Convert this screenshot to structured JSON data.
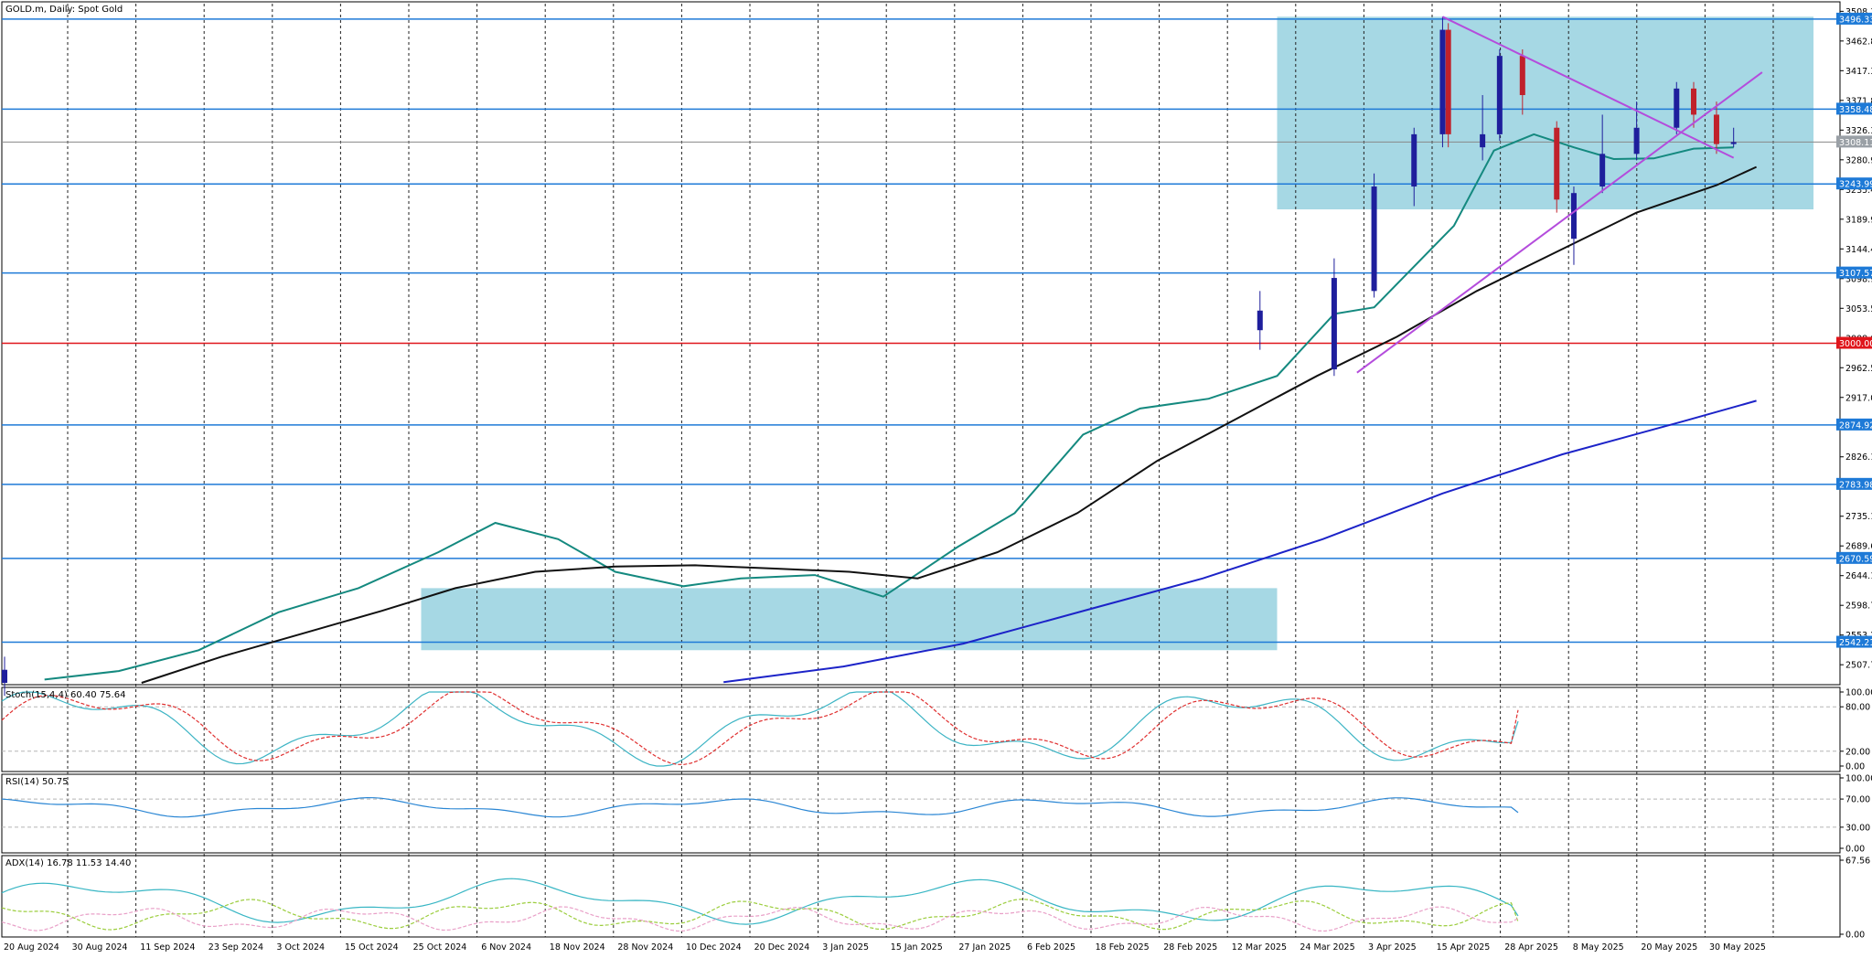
{
  "panels": {
    "main_title": "GOLD.m, Daily: Spot Gold",
    "stoch_title": "Stoch(15,4,4) 60.40 75.64",
    "rsi_title": "RSI(14) 50.75",
    "adx_title": "ADX(14) 16.78 11.53 14.40"
  },
  "colors": {
    "bull_candle": "#1e1e9c",
    "bear_candle": "#c0212b",
    "ma_teal": "#14897f",
    "ma_black": "#111111",
    "ma_blue": "#1c23c8",
    "level_blue": "#1e7ad7",
    "level_red": "#e0151b",
    "zone_fill": "#a6d8e4",
    "triangle": "#b44cdc",
    "stoch_main": "#3cb4c4",
    "stoch_signal": "#e03030",
    "rsi_line": "#2a86d4",
    "adx_line": "#38b6c4",
    "di_plus": "#9bcd3c",
    "di_minus": "#e9a0c8"
  },
  "x_ticks": [
    "20 Aug 2024",
    "30 Aug 2024",
    "11 Sep 2024",
    "23 Sep 2024",
    "3 Oct 2024",
    "15 Oct 2024",
    "25 Oct 2024",
    "6 Nov 2024",
    "18 Nov 2024",
    "28 Nov 2024",
    "10 Dec 2024",
    "20 Dec 2024",
    "3 Jan 2025",
    "15 Jan 2025",
    "27 Jan 2025",
    "6 Feb 2025",
    "18 Feb 2025",
    "28 Feb 2025",
    "12 Mar 2025",
    "24 Mar 2025",
    "3 Apr 2025",
    "15 Apr 2025",
    "28 Apr 2025",
    "8 May 2025",
    "20 May 2025",
    "30 May 2025"
  ],
  "y_ticks_main": [
    "3508.30",
    "3462.82",
    "3417.34",
    "3371.86",
    "3326.38",
    "3280.90",
    "3235.42",
    "3189.94",
    "3144.46",
    "3098.98",
    "3053.50",
    "3008.02",
    "2962.54",
    "2917.06",
    "2871.58",
    "2826.10",
    "2780.62",
    "2735.14",
    "2689.66",
    "2644.18",
    "2598.70",
    "2553.22",
    "2507.74"
  ],
  "price_labels": [
    {
      "text": "3496.33",
      "kind": "level"
    },
    {
      "text": "3358.48",
      "kind": "level"
    },
    {
      "text": "3308.11",
      "kind": "current"
    },
    {
      "text": "3243.99",
      "kind": "level"
    },
    {
      "text": "3107.57",
      "kind": "level"
    },
    {
      "text": "3000.00",
      "kind": "red"
    },
    {
      "text": "2874.92",
      "kind": "level"
    },
    {
      "text": "2783.98",
      "kind": "level"
    },
    {
      "text": "2670.59",
      "kind": "level"
    },
    {
      "text": "2542.21",
      "kind": "level"
    }
  ],
  "stoch_ticks": [
    "100.00",
    "80.00",
    "20.00",
    "0.00"
  ],
  "rsi_ticks": [
    "100.00",
    "70.00",
    "30.00",
    "0.00"
  ],
  "adx_ticks": [
    "67.56",
    "0.00"
  ],
  "chart_data": {
    "type": "candlestick",
    "title": "GOLD.m, Daily: Spot Gold",
    "ylim": [
      2480,
      3520
    ],
    "x_range": [
      "2024-08-13",
      "2025-06-30"
    ],
    "grid": true,
    "horizontal_levels": [
      3496.33,
      3358.48,
      3243.99,
      3107.57,
      3000.0,
      2874.92,
      2783.98,
      2670.59,
      2542.21
    ],
    "current_price": 3308.11,
    "shaded_zones": [
      {
        "x": [
          "2024-10-25",
          "2025-03-24"
        ],
        "y": [
          2530,
          2625
        ]
      },
      {
        "x": [
          "2025-03-24",
          "2025-06-26"
        ],
        "y": [
          3205,
          3500
        ]
      }
    ],
    "trendlines": [
      {
        "from": [
          "2025-04-22",
          3500
        ],
        "to": [
          "2025-06-12",
          3284
        ]
      },
      {
        "from": [
          "2025-04-07",
          2955
        ],
        "to": [
          "2025-06-17",
          3415
        ]
      }
    ],
    "moving_averages": [
      {
        "id": "ma_teal",
        "points": [
          [
            "2024-08-20",
            2485
          ],
          [
            "2024-09-02",
            2498
          ],
          [
            "2024-09-16",
            2530
          ],
          [
            "2024-09-30",
            2588
          ],
          [
            "2024-10-14",
            2625
          ],
          [
            "2024-10-28",
            2680
          ],
          [
            "2024-11-07",
            2725
          ],
          [
            "2024-11-18",
            2700
          ],
          [
            "2024-11-28",
            2650
          ],
          [
            "2024-12-10",
            2628
          ],
          [
            "2024-12-20",
            2640
          ],
          [
            "2025-01-02",
            2645
          ],
          [
            "2025-01-14",
            2612
          ],
          [
            "2025-01-27",
            2688
          ],
          [
            "2025-02-06",
            2740
          ],
          [
            "2025-02-18",
            2860
          ],
          [
            "2025-02-28",
            2900
          ],
          [
            "2025-03-12",
            2915
          ],
          [
            "2025-03-24",
            2950
          ],
          [
            "2025-04-03",
            3045
          ],
          [
            "2025-04-10",
            3055
          ],
          [
            "2025-04-24",
            3180
          ],
          [
            "2025-05-01",
            3295
          ],
          [
            "2025-05-08",
            3320
          ],
          [
            "2025-05-15",
            3300
          ],
          [
            "2025-05-22",
            3282
          ],
          [
            "2025-05-29",
            3283
          ],
          [
            "2025-06-05",
            3298
          ],
          [
            "2025-06-12",
            3300
          ]
        ]
      },
      {
        "id": "ma_black",
        "points": [
          [
            "2024-09-06",
            2480
          ],
          [
            "2024-09-20",
            2520
          ],
          [
            "2024-10-04",
            2555
          ],
          [
            "2024-10-18",
            2590
          ],
          [
            "2024-10-31",
            2625
          ],
          [
            "2024-11-14",
            2650
          ],
          [
            "2024-11-28",
            2658
          ],
          [
            "2024-12-12",
            2660
          ],
          [
            "2024-12-26",
            2655
          ],
          [
            "2025-01-08",
            2650
          ],
          [
            "2025-01-20",
            2640
          ],
          [
            "2025-02-03",
            2680
          ],
          [
            "2025-02-17",
            2740
          ],
          [
            "2025-03-03",
            2820
          ],
          [
            "2025-03-17",
            2885
          ],
          [
            "2025-03-31",
            2950
          ],
          [
            "2025-04-14",
            3010
          ],
          [
            "2025-04-28",
            3080
          ],
          [
            "2025-05-12",
            3140
          ],
          [
            "2025-05-26",
            3200
          ],
          [
            "2025-06-09",
            3242
          ],
          [
            "2025-06-16",
            3270
          ]
        ]
      },
      {
        "id": "ma_blue",
        "points": [
          [
            "2024-12-17",
            2481
          ],
          [
            "2025-01-07",
            2505
          ],
          [
            "2025-01-28",
            2540
          ],
          [
            "2025-02-18",
            2590
          ],
          [
            "2025-03-11",
            2640
          ],
          [
            "2025-04-01",
            2700
          ],
          [
            "2025-04-22",
            2770
          ],
          [
            "2025-05-13",
            2830
          ],
          [
            "2025-06-03",
            2880
          ],
          [
            "2025-06-16",
            2912
          ]
        ]
      }
    ],
    "candles_ohlc": [
      [
        "2024-08-13",
        2480,
        2520,
        2460,
        2500
      ],
      [
        "2025-03-21",
        3020,
        3080,
        2990,
        3050
      ],
      [
        "2025-04-03",
        2960,
        3130,
        2950,
        3100
      ],
      [
        "2025-04-10",
        3080,
        3260,
        3070,
        3240
      ],
      [
        "2025-04-17",
        3240,
        3330,
        3210,
        3320
      ],
      [
        "2025-04-22",
        3320,
        3500,
        3300,
        3480
      ],
      [
        "2025-04-23",
        3480,
        3490,
        3300,
        3320
      ],
      [
        "2025-04-29",
        3300,
        3380,
        3280,
        3320
      ],
      [
        "2025-05-02",
        3320,
        3450,
        3310,
        3440
      ],
      [
        "2025-05-06",
        3440,
        3450,
        3350,
        3380
      ],
      [
        "2025-05-12",
        3330,
        3340,
        3200,
        3220
      ],
      [
        "2025-05-15",
        3160,
        3240,
        3120,
        3230
      ],
      [
        "2025-05-20",
        3240,
        3350,
        3230,
        3290
      ],
      [
        "2025-05-26",
        3290,
        3370,
        3280,
        3330
      ],
      [
        "2025-06-02",
        3330,
        3400,
        3320,
        3390
      ],
      [
        "2025-06-05",
        3390,
        3400,
        3330,
        3350
      ],
      [
        "2025-06-09",
        3350,
        3370,
        3290,
        3305
      ],
      [
        "2025-06-12",
        3305,
        3330,
        3300,
        3308
      ]
    ],
    "candles_sampled": true,
    "stochastic": {
      "main": 60.4,
      "signal": 75.64,
      "params": "15,4,4",
      "levels": [
        80,
        20
      ],
      "range": [
        0,
        100
      ]
    },
    "rsi": {
      "value": 50.75,
      "period": 14,
      "levels": [
        70,
        30
      ],
      "range": [
        0,
        100
      ]
    },
    "adx": {
      "adx": 16.78,
      "di_plus": 11.53,
      "di_minus": 14.4,
      "period": 14,
      "range": [
        0,
        67.56
      ]
    }
  }
}
